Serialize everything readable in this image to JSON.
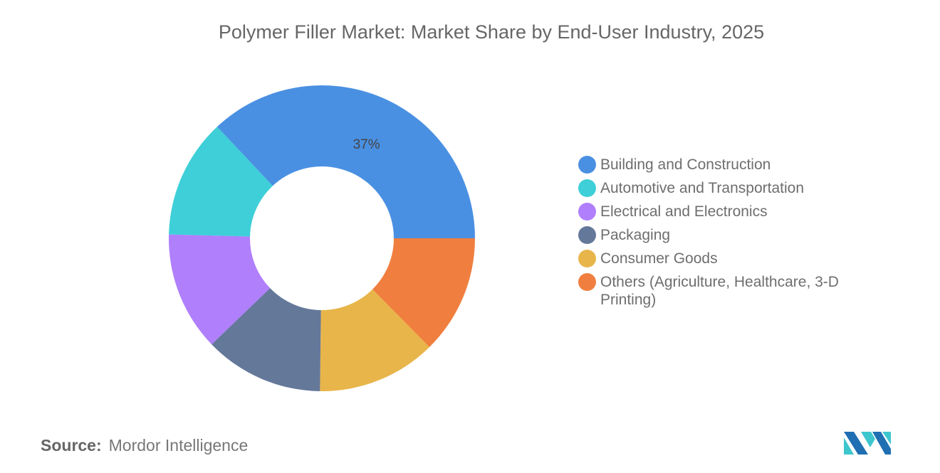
{
  "chart_data": {
    "type": "pie",
    "variant": "donut",
    "title": "Polymer Filler Market: Market Share by End-User Industry, 2025",
    "categories": [
      "Building and Construction",
      "Automotive and Transportation",
      "Electrical and Electronics",
      "Packaging",
      "Consumer Goods",
      "Others (Agriculture, Healthcare, 3-D Printing)"
    ],
    "values": [
      37,
      12.6,
      12.6,
      12.6,
      12.6,
      12.6
    ],
    "colors": [
      "#4a90e2",
      "#3ecfd8",
      "#b07ffc",
      "#64789a",
      "#e8b54a",
      "#f07f3f"
    ],
    "data_labels": [
      "37%",
      "",
      "",
      "",
      "",
      ""
    ],
    "legend_position": "right"
  },
  "source": {
    "label": "Source:",
    "value": "Mordor Intelligence"
  },
  "logo": {
    "icon": "mordor-intelligence-logo"
  }
}
